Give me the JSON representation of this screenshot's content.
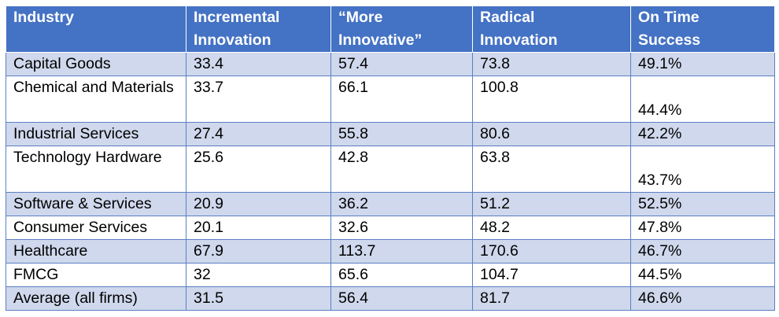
{
  "table": {
    "headers": [
      [
        "Industry"
      ],
      [
        "Incremental",
        "Innovation"
      ],
      [
        "“More",
        "Innovative”"
      ],
      [
        "Radical",
        "Innovation"
      ],
      [
        "On Time",
        "Success"
      ]
    ],
    "rows": [
      {
        "industry": "Capital Goods",
        "incremental": "33.4",
        "more": "57.4",
        "radical": "73.8",
        "ontime": "49.1%"
      },
      {
        "industry": "Chemical and Materials",
        "incremental": "33.7",
        "more": "66.1",
        "radical": "100.8",
        "ontime": "44.4%"
      },
      {
        "industry": "Industrial Services",
        "incremental": "27.4",
        "more": "55.8",
        "radical": "80.6",
        "ontime": "42.2%"
      },
      {
        "industry": "Technology Hardware",
        "incremental": "25.6",
        "more": "42.8",
        "radical": "63.8",
        "ontime": "43.7%"
      },
      {
        "industry": "Software & Services",
        "incremental": "20.9",
        "more": "36.2",
        "radical": "51.2",
        "ontime": "52.5%"
      },
      {
        "industry": "Consumer Services",
        "incremental": "20.1",
        "more": "32.6",
        "radical": "48.2",
        "ontime": "47.8%"
      },
      {
        "industry": "Healthcare",
        "incremental": "67.9",
        "more": "113.7",
        "radical": "170.6",
        "ontime": "46.7%"
      },
      {
        "industry": "FMCG",
        "incremental": "32",
        "more": "65.6",
        "radical": "104.7",
        "ontime": "44.5%"
      },
      {
        "industry": "Average (all firms)",
        "incremental": "31.5",
        "more": "56.4",
        "radical": "81.7",
        "ontime": "46.6%"
      }
    ]
  }
}
